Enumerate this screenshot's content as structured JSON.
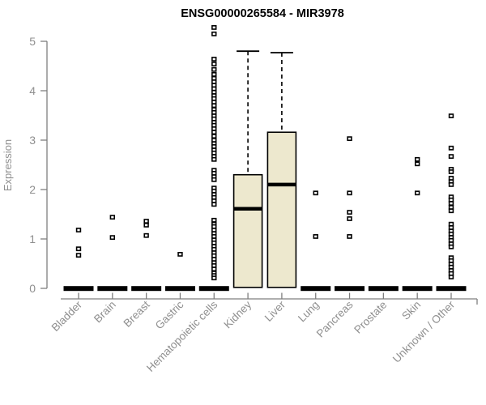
{
  "chart_data": {
    "type": "boxplot",
    "title": "ENSG00000265584 - MIR3978",
    "ylabel": "Expression",
    "ylim": [
      0,
      5.4
    ],
    "yticks": [
      0,
      1,
      2,
      3,
      4,
      5
    ],
    "grid": false,
    "legend": "none",
    "x_tick_rotation_deg": 45,
    "categories": [
      "Bladder",
      "Brain",
      "Breast",
      "Gastric",
      "Hematopoietic cells",
      "Kidney",
      "Liver",
      "Lung",
      "Pancreas",
      "Prostate",
      "Skin",
      "Unknown / Other"
    ],
    "groups": [
      {
        "label": "Bladder",
        "zero_bar": true,
        "box": null,
        "outliers": [
          1.18,
          0.8,
          0.67
        ]
      },
      {
        "label": "Brain",
        "zero_bar": true,
        "box": null,
        "outliers": [
          1.44,
          1.03
        ]
      },
      {
        "label": "Breast",
        "zero_bar": true,
        "box": null,
        "outliers": [
          1.36,
          1.28,
          1.07
        ]
      },
      {
        "label": "Gastric",
        "zero_bar": true,
        "box": null,
        "outliers": [
          0.69
        ]
      },
      {
        "label": "Hematopoietic cells",
        "zero_bar": true,
        "box": null,
        "outliers": [
          5.28,
          5.15,
          4.64,
          4.54,
          4.43,
          4.33,
          4.25,
          4.18,
          4.11,
          4.04,
          3.97,
          3.9,
          3.84,
          3.77,
          3.7,
          3.62,
          3.56,
          3.49,
          3.43,
          3.36,
          3.3,
          3.23,
          3.16,
          3.08,
          3.0,
          2.93,
          2.87,
          2.8,
          2.74,
          2.67,
          2.61,
          2.39,
          2.33,
          2.26,
          2.2,
          2.03,
          1.97,
          1.9,
          1.84,
          1.77,
          1.7,
          1.38,
          1.3,
          1.25,
          1.18,
          1.11,
          1.05,
          0.98,
          0.92,
          0.85,
          0.79,
          0.72,
          0.66,
          0.59,
          0.52,
          0.46,
          0.39,
          0.31,
          0.26,
          0.21
        ]
      },
      {
        "label": "Kidney",
        "zero_bar": false,
        "box": {
          "q1": 0.02,
          "median": 1.61,
          "q3": 2.3,
          "whisker_high": 4.8
        },
        "outliers": []
      },
      {
        "label": "Liver",
        "zero_bar": false,
        "box": {
          "q1": 0.02,
          "median": 2.1,
          "q3": 3.16,
          "whisker_high": 4.77
        },
        "outliers": []
      },
      {
        "label": "Lung",
        "zero_bar": true,
        "box": null,
        "outliers": [
          1.93,
          1.05
        ]
      },
      {
        "label": "Pancreas",
        "zero_bar": true,
        "box": null,
        "outliers": [
          3.03,
          1.93,
          1.54,
          1.41,
          1.05
        ]
      },
      {
        "label": "Prostate",
        "zero_bar": true,
        "box": null,
        "outliers": []
      },
      {
        "label": "Skin",
        "zero_bar": true,
        "box": null,
        "outliers": [
          2.61,
          2.52,
          1.93
        ]
      },
      {
        "label": "Unknown / Other",
        "zero_bar": true,
        "box": null,
        "outliers": [
          3.49,
          2.84,
          2.67,
          2.41,
          2.36,
          2.23,
          2.16,
          2.1,
          1.85,
          1.79,
          1.72,
          1.64,
          1.57,
          1.3,
          1.23,
          1.16,
          1.1,
          1.03,
          0.97,
          0.9,
          0.84,
          0.62,
          0.56,
          0.49,
          0.43,
          0.36,
          0.3,
          0.23
        ]
      }
    ],
    "colors": {
      "box_fill": "#EDE8CE",
      "data_stroke": "#000000",
      "axis": "#7f7f7f",
      "tick_label": "#8f8f8f",
      "title": "#000000"
    }
  }
}
